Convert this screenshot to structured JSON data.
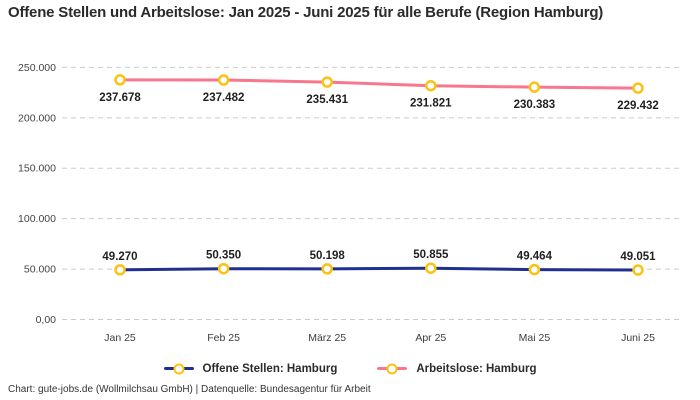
{
  "title": "Offene Stellen und Arbeitslose: Jan 2025 - Juni 2025 für alle Berufe (Region Hamburg)",
  "footer": "Chart: gute-jobs.de (Wollmilchsau GmbH) | Datenquelle: Bundesagentur für Arbeit",
  "colors": {
    "open_positions_line": "#20308f",
    "unemployed_line": "#f7778e",
    "marker_stroke": "#fcc113",
    "marker_fill": "#ffffff",
    "gridline": "#cbcbcb",
    "tick_label": "#444444",
    "data_label": "#1f1f1f"
  },
  "chart_data": {
    "type": "line",
    "categories": [
      "Jan 25",
      "Feb 25",
      "März 25",
      "Apr 25",
      "Mai 25",
      "Juni 25"
    ],
    "series": [
      {
        "name": "Offene Stellen: Hamburg",
        "color": "#20308f",
        "values": [
          49270,
          50350,
          50198,
          50855,
          49464,
          49051
        ],
        "value_labels": [
          "49.270",
          "50.350",
          "50.198",
          "50.855",
          "49.464",
          "49.051"
        ],
        "label_position": "above"
      },
      {
        "name": "Arbeitslose: Hamburg",
        "color": "#f7778e",
        "values": [
          237678,
          237482,
          235431,
          231821,
          230383,
          229432
        ],
        "value_labels": [
          "237.678",
          "237.482",
          "235.431",
          "231.821",
          "230.383",
          "229.432"
        ],
        "label_position": "below"
      }
    ],
    "y_ticks": [
      {
        "value": 0,
        "label": "0,00"
      },
      {
        "value": 50000,
        "label": "50.000"
      },
      {
        "value": 100000,
        "label": "100.000"
      },
      {
        "value": 150000,
        "label": "150.000"
      },
      {
        "value": 200000,
        "label": "200.000"
      },
      {
        "value": 250000,
        "label": "250.000"
      }
    ],
    "ylim": [
      0,
      250000
    ],
    "grid": "horizontal-dashed",
    "legend_position": "bottom",
    "marker": {
      "shape": "circle",
      "fill": "#ffffff",
      "stroke": "#fcc113"
    }
  },
  "legend": {
    "items": [
      {
        "label": "Offene Stellen: Hamburg",
        "line_color": "#20308f",
        "marker_stroke": "#fcc113"
      },
      {
        "label": "Arbeitslose: Hamburg",
        "line_color": "#f7778e",
        "marker_stroke": "#fcc113"
      }
    ]
  }
}
